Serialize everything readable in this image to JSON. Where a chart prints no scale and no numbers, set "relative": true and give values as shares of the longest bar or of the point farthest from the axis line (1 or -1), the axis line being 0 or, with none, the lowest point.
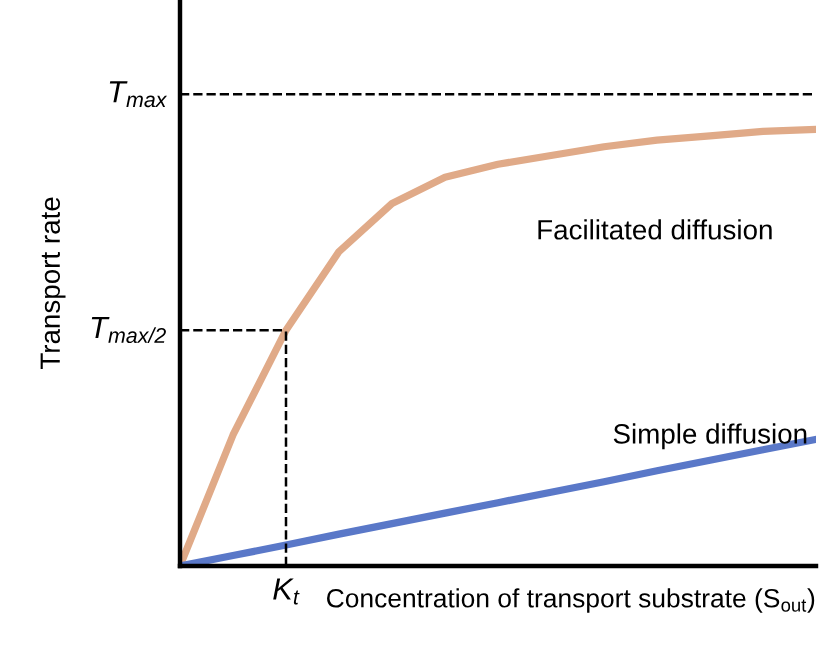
{
  "chart_data": {
    "type": "line",
    "relative": true,
    "xlabel": "Concentration of transport substrate (S$_{out}$)",
    "ylabel": "Transport rate",
    "annotations": [
      "K$_{t}$"
    ],
    "categories": [
      null,
      null,
      null,
      null,
      null,
      null,
      null,
      null,
      null,
      null,
      null,
      null,
      null
    ],
    "series": [
      {
        "name": "Facilitated diffusion",
        "color": "#e0aa88",
        "values": [
          0,
          0.3,
          0.54,
          0.72,
          0.83,
          0.89,
          0.92,
          0.94,
          0.96,
          0.975,
          0.985,
          0.995,
          1.0
        ]
      },
      {
        "name": "Simple diffusion",
        "color": "#5a78c8",
        "values": [
          0,
          0.024,
          0.048,
          0.073,
          0.097,
          0.121,
          0.145,
          0.169,
          0.193,
          0.218,
          0.242,
          0.266,
          0.29
        ]
      }
    ],
    "ref_lines": [
      {
        "axis": "y",
        "value": 1.08,
        "label": "T$_{max}$",
        "line_style": "dashed",
        "color": "#000000"
      },
      {
        "axis": "y",
        "value": 0.54,
        "label": "T$_{max/2}$",
        "line_style": "dashed",
        "color": "#000000"
      }
    ],
    "legend": false,
    "marker": "none",
    "line_style": "solid"
  }
}
